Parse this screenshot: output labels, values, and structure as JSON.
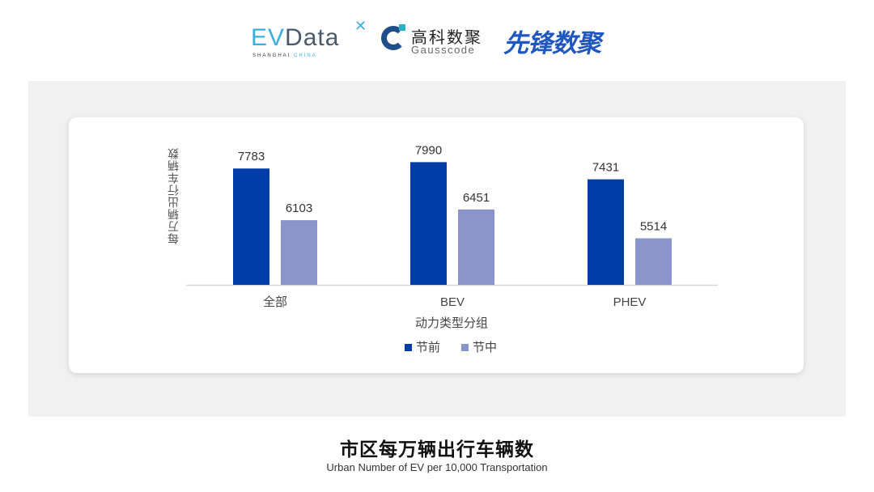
{
  "logos": {
    "evdata": "EVData",
    "evdata_sub": "SHANGHAI CHINA",
    "gauss_cn": "高科数聚",
    "gauss_en": "Gausscode",
    "xianfeng": "先锋数聚"
  },
  "chart_data": {
    "type": "bar",
    "categories": [
      "全部",
      "BEV",
      "PHEV"
    ],
    "series": [
      {
        "name": "节前",
        "values": [
          7783,
          7990,
          7431
        ],
        "color": "#003da6"
      },
      {
        "name": "节中",
        "values": [
          6103,
          6451,
          5514
        ],
        "color": "#8a95cc"
      }
    ],
    "xlabel": "动力类型分组",
    "ylabel": "每万辆出行车辆数",
    "ylim": [
      4000,
      9000
    ],
    "grid": false,
    "legend": "bottom",
    "title": "市区每万辆出行车辆数",
    "subtitle": "Urban Number of EV per 10,000 Transportation"
  }
}
